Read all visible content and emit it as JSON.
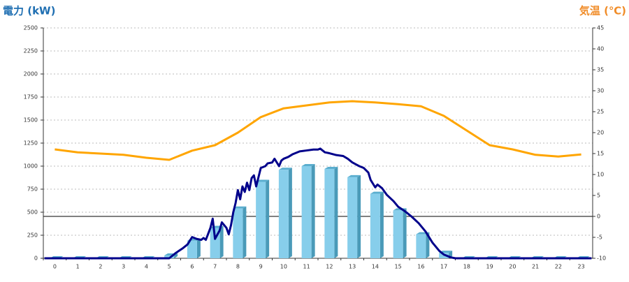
{
  "chart_data": {
    "type": "bar",
    "title_left": "電力 (kW)",
    "title_right": "気温 (℃)",
    "categories": [
      "0",
      "1",
      "2",
      "3",
      "4",
      "5",
      "6",
      "7",
      "8",
      "9",
      "10",
      "11",
      "12",
      "13",
      "14",
      "15",
      "16",
      "17",
      "18",
      "19",
      "20",
      "21",
      "22",
      "23"
    ],
    "ylim": [
      0,
      2500
    ],
    "yticks": [
      0,
      250,
      500,
      750,
      1000,
      1250,
      1500,
      1750,
      2000,
      2250,
      2500
    ],
    "y2lim": [
      -10,
      45
    ],
    "y2ticks": [
      -10,
      -5,
      0,
      5,
      10,
      15,
      20,
      25,
      30,
      35,
      40,
      45
    ],
    "grid": true,
    "zero_line_y2": true,
    "series": [
      {
        "type": "bar",
        "color": "#87ceeb",
        "values": [
          0,
          0,
          0,
          0,
          0,
          30,
          190,
          330,
          540,
          830,
          960,
          1000,
          970,
          880,
          700,
          520,
          260,
          60,
          0,
          0,
          0,
          0,
          0,
          0
        ]
      },
      {
        "type": "line",
        "color": "#00008b",
        "x": [
          -0.45,
          5.0,
          5.3,
          5.6,
          5.8,
          6.0,
          6.2,
          6.4,
          6.5,
          6.6,
          6.8,
          6.9,
          7.0,
          7.2,
          7.3,
          7.5,
          7.6,
          7.7,
          7.8,
          7.9,
          8.0,
          8.1,
          8.2,
          8.3,
          8.4,
          8.5,
          8.6,
          8.7,
          8.8,
          8.9,
          9.0,
          9.2,
          9.3,
          9.5,
          9.6,
          9.8,
          9.9,
          10.0,
          10.2,
          10.4,
          10.7,
          11.0,
          11.3,
          11.5,
          11.6,
          11.8,
          12.0,
          12.3,
          12.6,
          12.8,
          13.0,
          13.3,
          13.5,
          13.7,
          13.8,
          14.0,
          14.1,
          14.3,
          14.5,
          14.8,
          15.0,
          15.3,
          15.6,
          15.9,
          16.2,
          16.5,
          16.8,
          17.0,
          17.3,
          17.5,
          23.45
        ],
        "values": [
          0,
          0,
          60,
          110,
          150,
          230,
          210,
          200,
          220,
          200,
          330,
          430,
          210,
          300,
          390,
          330,
          260,
          360,
          500,
          600,
          740,
          640,
          780,
          720,
          820,
          740,
          870,
          900,
          780,
          880,
          980,
          1000,
          1030,
          1040,
          1080,
          1000,
          1060,
          1080,
          1100,
          1130,
          1160,
          1170,
          1180,
          1180,
          1190,
          1150,
          1140,
          1120,
          1110,
          1080,
          1040,
          1000,
          980,
          930,
          850,
          770,
          800,
          760,
          690,
          620,
          560,
          510,
          450,
          380,
          290,
          170,
          80,
          40,
          10,
          0,
          0
        ]
      },
      {
        "type": "line",
        "axis": "y2",
        "color": "#ffa500",
        "values": [
          16,
          15.3,
          15,
          14.7,
          14,
          13.5,
          15.7,
          17,
          20,
          23.7,
          25.8,
          26.5,
          27.2,
          27.5,
          27.2,
          26.8,
          26.3,
          24,
          20.5,
          17,
          16,
          14.7,
          14.3,
          14.8
        ]
      }
    ]
  }
}
